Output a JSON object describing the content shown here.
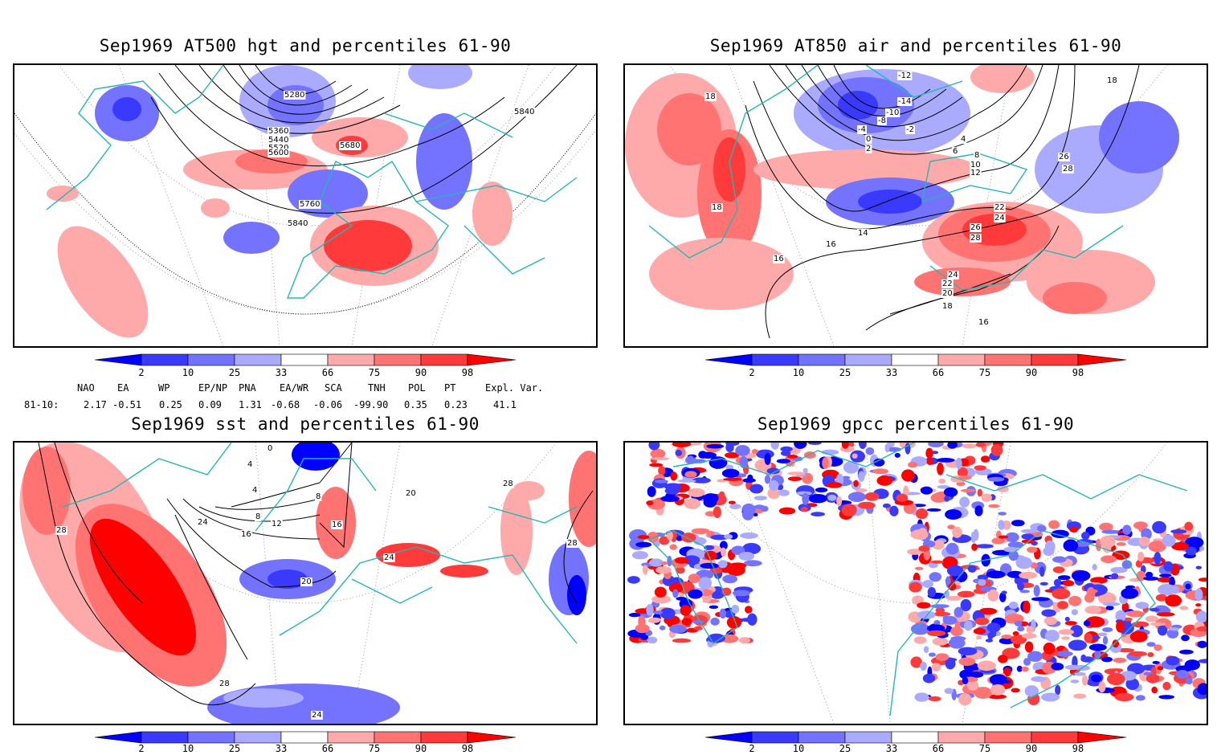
{
  "panels": [
    {
      "id": "p1",
      "title": "Sep1969 AT500 hgt and percentiles 61-90",
      "contour_labels": [
        "5280",
        "5360",
        "5440",
        "5520",
        "5600",
        "5680",
        "5760",
        "5840",
        "5840"
      ]
    },
    {
      "id": "p2",
      "title": "Sep1969 AT850 air and percentiles 61-90",
      "contour_labels": [
        "-12",
        "-14",
        "-10",
        "-8",
        "-4",
        "-2",
        "0",
        "2",
        "4",
        "6",
        "8",
        "10",
        "12",
        "14",
        "16",
        "16",
        "18",
        "18",
        "18",
        "18",
        "20",
        "22",
        "22",
        "24",
        "24",
        "26",
        "26",
        "28",
        "28",
        "16"
      ]
    },
    {
      "id": "p3",
      "title": "Sep1969 sst and percentiles 61-90",
      "contour_labels": [
        "0",
        "4",
        "4",
        "8",
        "8",
        "12",
        "16",
        "16",
        "20",
        "20",
        "24",
        "24",
        "24",
        "28",
        "28",
        "28",
        "28"
      ]
    },
    {
      "id": "p4",
      "title": "Sep1969 gpcc percentiles 61-90",
      "contour_labels": []
    }
  ],
  "colorbar": {
    "labels": [
      "2",
      "10",
      "25",
      "33",
      "66",
      "75",
      "90",
      "98"
    ],
    "colors": [
      "#0000ff",
      "#3a3aff",
      "#7373ff",
      "#aaaaff",
      "#ffaaaa",
      "#ff7373",
      "#ff3a3a",
      "#ff0000"
    ]
  },
  "indices": {
    "header": [
      "NAO",
      "EA",
      "WP",
      "EP/NP",
      "PNA",
      "EA/WR",
      "SCA",
      "TNH",
      "POL",
      "PT",
      "Expl. Var."
    ],
    "row_label": "81-10:",
    "values": [
      "2.17",
      "-0.51",
      "0.25",
      "0.09",
      "1.31",
      "-0.68",
      "-0.06",
      "-99.90",
      "0.35",
      "0.23",
      "41.1"
    ]
  },
  "colors": {
    "coast": "#26b5b5",
    "grid": "#999999",
    "contour": "#000000"
  }
}
